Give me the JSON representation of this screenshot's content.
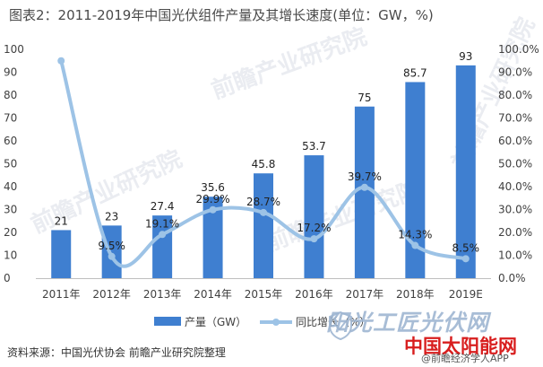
{
  "chart_data": {
    "type": "bar",
    "title": "图表2：2011-2019年中国光伏组件产量及其增长速度(单位：GW，%)",
    "categories": [
      "2011年",
      "2012年",
      "2013年",
      "2014年",
      "2015年",
      "2016年",
      "2017年",
      "2018年",
      "2019E"
    ],
    "series": [
      {
        "name": "产量（GW）",
        "type": "bar",
        "axis": "left",
        "values": [
          21,
          23,
          27.4,
          35.6,
          45.8,
          53.7,
          75,
          85.7,
          93
        ],
        "labels": [
          "21",
          "23",
          "27.4",
          "35.6",
          "45.8",
          "53.7",
          "75",
          "85.7",
          "93"
        ],
        "color": "#3f7fd0"
      },
      {
        "name": "同比增长（%）",
        "type": "line",
        "axis": "right",
        "values": [
          95,
          9.5,
          19.1,
          29.9,
          28.7,
          17.2,
          39.7,
          14.3,
          8.5
        ],
        "labels": [
          "",
          "9.5%",
          "19.1%",
          "29.9%",
          "28.7%",
          "17.2%",
          "39.7%",
          "14.3%",
          "8.5%"
        ],
        "color": "#9dc3e6"
      }
    ],
    "y_left": {
      "range": [
        0,
        100
      ],
      "ticks": [
        "0",
        "10",
        "20",
        "30",
        "40",
        "50",
        "60",
        "70",
        "80",
        "90",
        "100"
      ]
    },
    "y_right": {
      "range": [
        0,
        100
      ],
      "ticks": [
        "0.0%",
        "10.0%",
        "20.0%",
        "30.0%",
        "40.0%",
        "50.0%",
        "60.0%",
        "70.0%",
        "80.0%",
        "90.0%",
        "100.0%"
      ]
    },
    "grid": false,
    "legend": "bottom-center"
  },
  "source": "资料来源：中国光伏协会 前瞻产业研究院整理",
  "watermarks": {
    "bg_text": "前瞻产业研究院",
    "site_name": "阳光工匠光伏网",
    "site_cn": "中国太阳能网",
    "app": "@前瞻经济学人APP"
  }
}
